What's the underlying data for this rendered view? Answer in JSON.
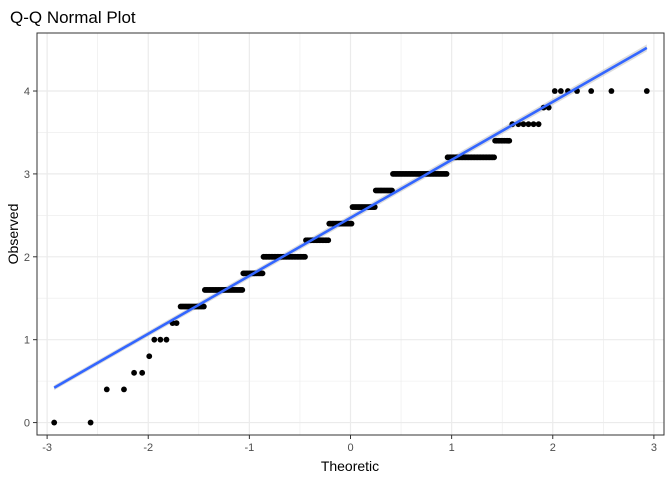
{
  "chart_data": {
    "type": "scatter",
    "title": "Q-Q Normal Plot",
    "xlabel": "Theoretic",
    "ylabel": "Observed",
    "xlim": [
      -3.1,
      3.1
    ],
    "ylim": [
      -0.15,
      4.7
    ],
    "x_ticks": [
      -3,
      -2,
      -1,
      0,
      1,
      2,
      3
    ],
    "x_tick_labels": [
      "-3",
      "-2",
      "-1",
      "0",
      "1",
      "2",
      "3"
    ],
    "y_ticks": [
      0,
      1,
      2,
      3,
      4
    ],
    "y_tick_labels": [
      "0",
      "1",
      "2",
      "3",
      "4"
    ],
    "grid": true,
    "colors": {
      "points": "#000000",
      "line": "#3366ff",
      "ribbon": "#b3b3b3",
      "grid": "#ebebeb",
      "border": "#333333"
    },
    "series": [
      {
        "type": "points",
        "steps": [
          {
            "y": 0.0,
            "x": [
              -2.93
            ]
          },
          {
            "y": 0.0,
            "x": [
              -2.57
            ]
          },
          {
            "y": 0.4,
            "x": [
              -2.41,
              -2.24
            ]
          },
          {
            "y": 0.6,
            "x": [
              -2.14,
              -2.06
            ]
          },
          {
            "y": 0.8,
            "x": [
              -1.99
            ]
          },
          {
            "y": 1.0,
            "x": [
              -1.94,
              -1.88,
              -1.82
            ]
          },
          {
            "y": 1.2,
            "x": [
              -1.76,
              -1.72
            ]
          },
          {
            "y": 1.4,
            "range": [
              -1.68,
              -1.45
            ]
          },
          {
            "y": 1.6,
            "range": [
              -1.44,
              -1.07
            ]
          },
          {
            "y": 1.8,
            "range": [
              -1.06,
              -0.87
            ]
          },
          {
            "y": 2.0,
            "range": [
              -0.86,
              -0.45
            ]
          },
          {
            "y": 2.2,
            "range": [
              -0.44,
              -0.22
            ]
          },
          {
            "y": 2.4,
            "range": [
              -0.21,
              0.01
            ]
          },
          {
            "y": 2.6,
            "range": [
              0.02,
              0.24
            ]
          },
          {
            "y": 2.8,
            "range": [
              0.25,
              0.41
            ]
          },
          {
            "y": 3.0,
            "range": [
              0.42,
              0.95
            ]
          },
          {
            "y": 3.2,
            "range": [
              0.96,
              1.42
            ]
          },
          {
            "y": 3.4,
            "range": [
              1.43,
              1.57
            ]
          },
          {
            "y": 3.6,
            "x": [
              1.6,
              1.66,
              1.71,
              1.76,
              1.81,
              1.86
            ]
          },
          {
            "y": 3.8,
            "x": [
              1.91,
              1.96
            ]
          },
          {
            "y": 4.0,
            "x": [
              2.02,
              2.08,
              2.15,
              2.24,
              2.38,
              2.58,
              2.93
            ]
          }
        ]
      },
      {
        "type": "fit_line",
        "x": [
          -2.93,
          2.93
        ],
        "y": [
          0.42,
          4.52
        ]
      }
    ]
  }
}
